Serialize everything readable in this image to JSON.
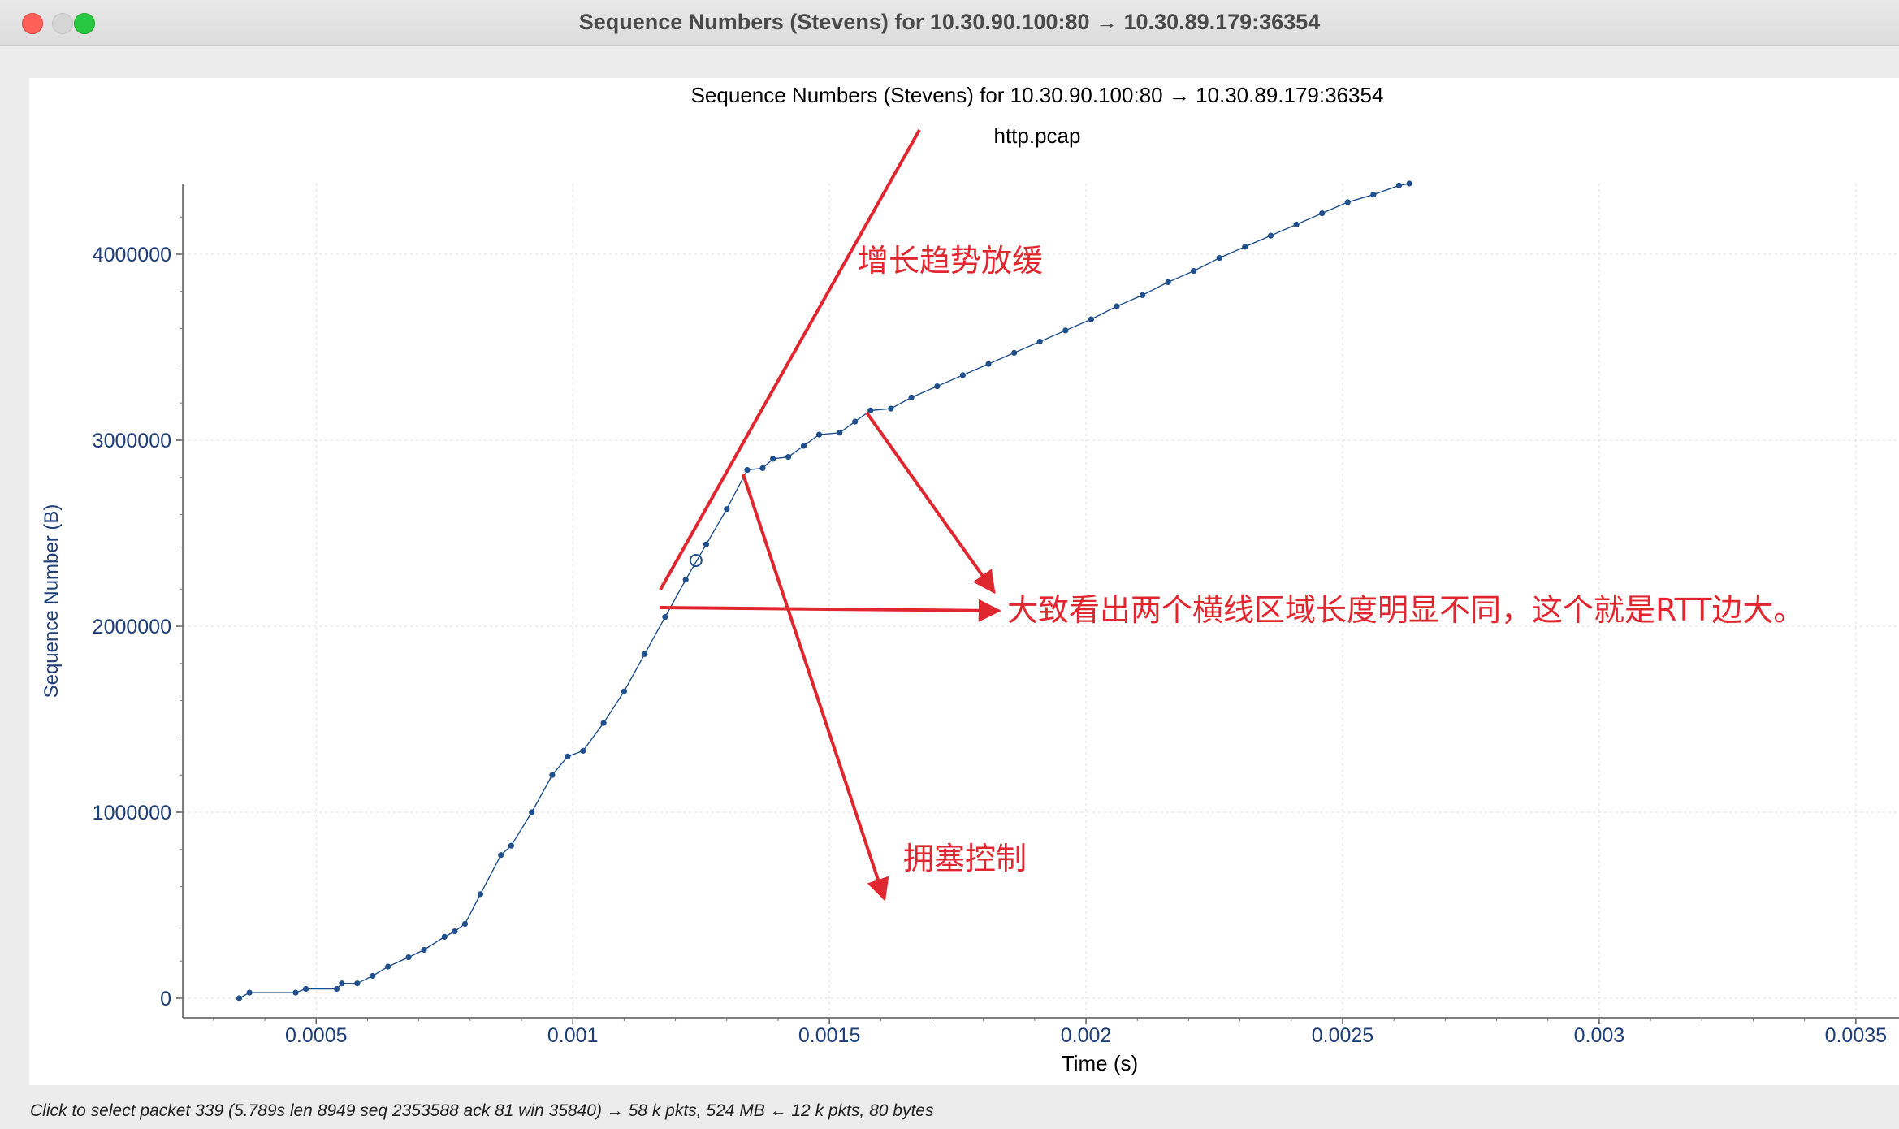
{
  "window": {
    "title": "Sequence Numbers (Stevens) for 10.30.90.100:80 → 10.30.89.179:36354"
  },
  "plot": {
    "title": "Sequence Numbers (Stevens) for 10.30.90.100:80 → 10.30.89.179:36354",
    "subtitle": "http.pcap",
    "annotations": {
      "slowdown": "增长趋势放缓",
      "rtt_note": "大致看出两个横线区域长度明显不同，这个就是RTT边大。",
      "congestion": "拥塞控制"
    }
  },
  "chart_data": {
    "type": "scatter",
    "title": "Sequence Numbers (Stevens) for 10.30.90.100:80 → 10.30.89.179:36354",
    "subtitle": "http.pcap",
    "xlabel": "Time (s)",
    "ylabel": "Sequence Number (B)",
    "xlim": [
      0.00024,
      0.0036
    ],
    "ylim": [
      -20000,
      4400000
    ],
    "x_ticks": [
      "0.0005",
      "0.001",
      "0.0015",
      "0.002",
      "0.0025",
      "0.003",
      "0.0035"
    ],
    "y_ticks": [
      "0",
      "1000000",
      "2000000",
      "3000000",
      "4000000"
    ],
    "grid": true,
    "series": [
      {
        "color": "#1f4f8c",
        "points": [
          [
            0.00035,
            0
          ],
          [
            0.00037,
            30000
          ],
          [
            0.00046,
            30000
          ],
          [
            0.00048,
            50000
          ],
          [
            0.00054,
            50000
          ],
          [
            0.00055,
            80000
          ],
          [
            0.00058,
            80000
          ],
          [
            0.00061,
            120000
          ],
          [
            0.00064,
            170000
          ],
          [
            0.00068,
            220000
          ],
          [
            0.00071,
            260000
          ],
          [
            0.00075,
            330000
          ],
          [
            0.00077,
            360000
          ],
          [
            0.00079,
            400000
          ],
          [
            0.00082,
            560000
          ],
          [
            0.00086,
            770000
          ],
          [
            0.00088,
            820000
          ],
          [
            0.00092,
            1000000
          ],
          [
            0.00096,
            1200000
          ],
          [
            0.00099,
            1300000
          ],
          [
            0.00102,
            1330000
          ],
          [
            0.00106,
            1480000
          ],
          [
            0.0011,
            1650000
          ],
          [
            0.00114,
            1850000
          ],
          [
            0.00118,
            2050000
          ],
          [
            0.00122,
            2250000
          ],
          [
            0.00126,
            2440000
          ],
          [
            0.0013,
            2630000
          ],
          [
            0.00134,
            2840000
          ],
          [
            0.00137,
            2850000
          ],
          [
            0.00139,
            2900000
          ],
          [
            0.00142,
            2910000
          ],
          [
            0.00145,
            2970000
          ],
          [
            0.00148,
            3030000
          ],
          [
            0.00152,
            3040000
          ],
          [
            0.00155,
            3100000
          ],
          [
            0.00158,
            3160000
          ],
          [
            0.00162,
            3170000
          ],
          [
            0.00166,
            3230000
          ],
          [
            0.00171,
            3290000
          ],
          [
            0.00176,
            3350000
          ],
          [
            0.00181,
            3410000
          ],
          [
            0.00186,
            3470000
          ],
          [
            0.00191,
            3530000
          ],
          [
            0.00196,
            3590000
          ],
          [
            0.00201,
            3650000
          ],
          [
            0.00206,
            3720000
          ],
          [
            0.00211,
            3780000
          ],
          [
            0.00216,
            3850000
          ],
          [
            0.00221,
            3910000
          ],
          [
            0.00226,
            3980000
          ],
          [
            0.00231,
            4040000
          ],
          [
            0.00236,
            4100000
          ],
          [
            0.00241,
            4160000
          ],
          [
            0.00246,
            4220000
          ],
          [
            0.00251,
            4280000
          ],
          [
            0.00256,
            4320000
          ],
          [
            0.00261,
            4370000
          ],
          [
            0.00263,
            4380000
          ]
        ]
      }
    ],
    "highlighted_point": [
      0.00124,
      2353588
    ]
  },
  "status_bar": {
    "text": "Click to select packet 339 (5.789s len 8949 seq 2353588 ack 81 win 35840) → 58 k pkts, 524 MB ← 12 k pkts, 80 bytes"
  },
  "colors": {
    "series": "#1f4f8c",
    "axis_text": "#1f3f7a",
    "annotation": "#e0262e",
    "close": "#fe5f57",
    "zoom": "#28c840"
  }
}
